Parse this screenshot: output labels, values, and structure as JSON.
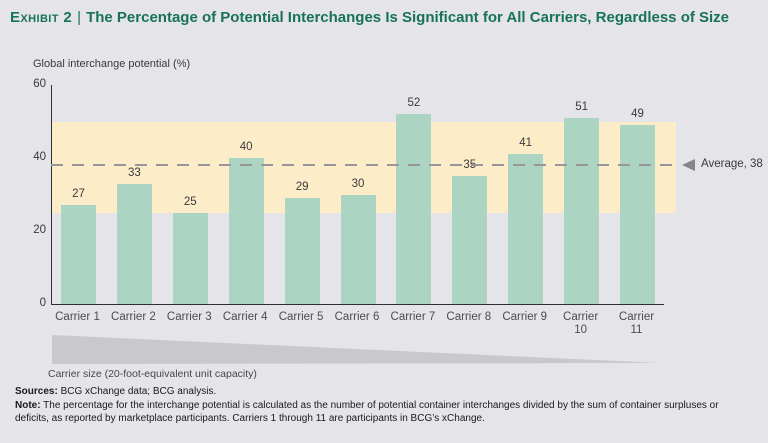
{
  "header": {
    "exhibit_label": "Exhibit 2",
    "separator": "|",
    "title": "The Percentage of Potential Interchanges Is Significant for All Carriers, Regardless of Size"
  },
  "chart_data": {
    "type": "bar",
    "title": "Exhibit 2 | The Percentage of Potential Interchanges Is Significant for All Carriers, Regardless of Size",
    "ylabel": "Global interchange potential (%)",
    "xlabel": "Carrier size (20-foot-equivalent unit capacity)",
    "categories": [
      "Carrier 1",
      "Carrier 2",
      "Carrier 3",
      "Carrier 4",
      "Carrier 5",
      "Carrier 6",
      "Carrier 7",
      "Carrier 8",
      "Carrier 9",
      "Carrier 10",
      "Carrier 11"
    ],
    "values": [
      27,
      33,
      25,
      40,
      29,
      30,
      52,
      35,
      41,
      51,
      49
    ],
    "ylim": [
      0,
      60
    ],
    "yticks": [
      0,
      20,
      40,
      60
    ],
    "grid": false,
    "legend": "none",
    "average": {
      "value": 38,
      "label": "Average, 38"
    },
    "highlight_band": {
      "from": 25,
      "to": 50
    }
  },
  "colors": {
    "background": "#e5e4e8",
    "bar": "#abd4c3",
    "band": "#fdecc8",
    "title_green": "#177356",
    "axis": "#2f2f33",
    "dash": "#97979b",
    "arrow": "#85858a",
    "triangle": "#c9c9cd"
  },
  "footnotes": {
    "sources_label": "Sources:",
    "sources_text": " BCG xChange data; BCG analysis.",
    "note_label": "Note:",
    "note_text": " The percentage for the interchange potential is calculated as the number of potential container interchanges divided by the sum of container surpluses or deficits, as reported by marketplace participants. Carriers 1 through 11 are participants in BCG’s xChange."
  }
}
